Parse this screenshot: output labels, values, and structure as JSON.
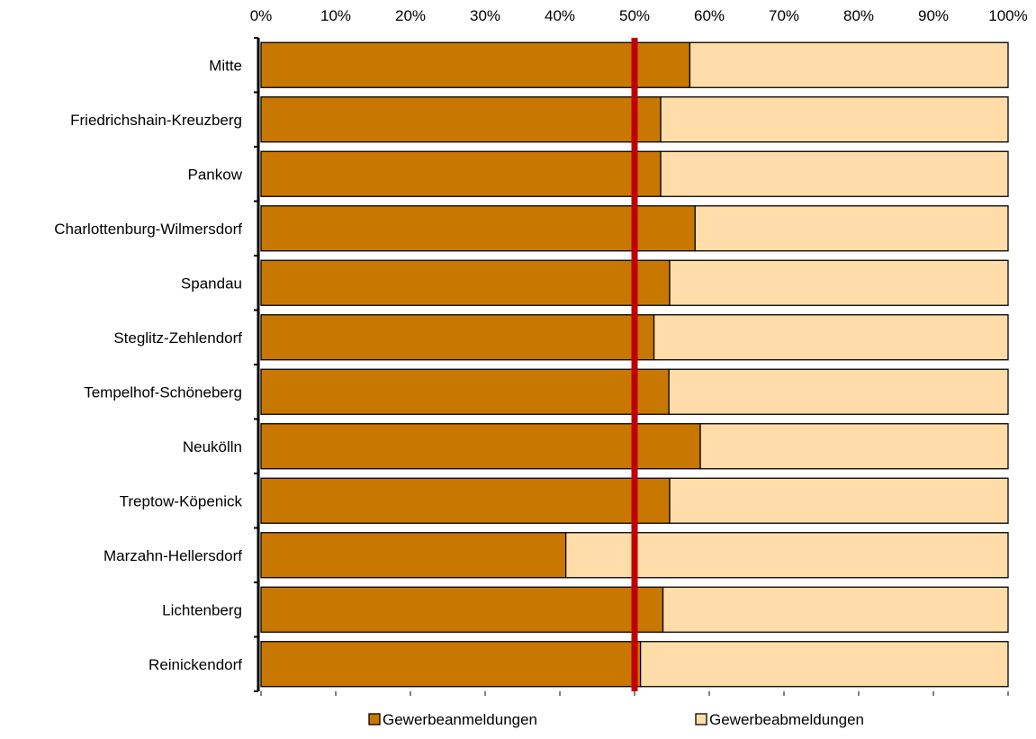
{
  "chart_data": {
    "type": "bar",
    "orientation": "horizontal",
    "stacked": "percent",
    "title": "",
    "xlabel": "",
    "ylabel": "",
    "xlim": [
      0,
      100
    ],
    "x_ticks": [
      0,
      10,
      20,
      30,
      40,
      50,
      60,
      70,
      80,
      90,
      100
    ],
    "x_tick_labels": [
      "0%",
      "10%",
      "20%",
      "30%",
      "40%",
      "50%",
      "60%",
      "70%",
      "80%",
      "90%",
      "100%"
    ],
    "x_axis_position": "top",
    "grid": false,
    "legend_position": "bottom",
    "reference_line": {
      "value": 50,
      "color": "#c00000"
    },
    "categories": [
      "Mitte",
      "Friedrichshain-Kreuzberg",
      "Pankow",
      "Charlottenburg-Wilmersdorf",
      "Spandau",
      "Steglitz-Zehlendorf",
      "Tempelhof-Schöneberg",
      "Neukölln",
      "Treptow-Köpenick",
      "Marzahn-Hellersdorf",
      "Lichtenberg",
      "Reinickendorf"
    ],
    "series": [
      {
        "name": "Gewerbeanmeldungen",
        "color": "#c87800",
        "values": [
          57.4,
          53.5,
          53.5,
          58.1,
          54.7,
          52.6,
          54.6,
          58.8,
          54.7,
          40.8,
          53.8,
          50.8
        ]
      },
      {
        "name": "Gewerbeabmeldungen",
        "color": "#ffdca8",
        "values": [
          42.6,
          46.5,
          46.5,
          41.9,
          45.3,
          47.4,
          45.4,
          41.2,
          45.3,
          59.2,
          46.2,
          49.2
        ]
      }
    ]
  }
}
